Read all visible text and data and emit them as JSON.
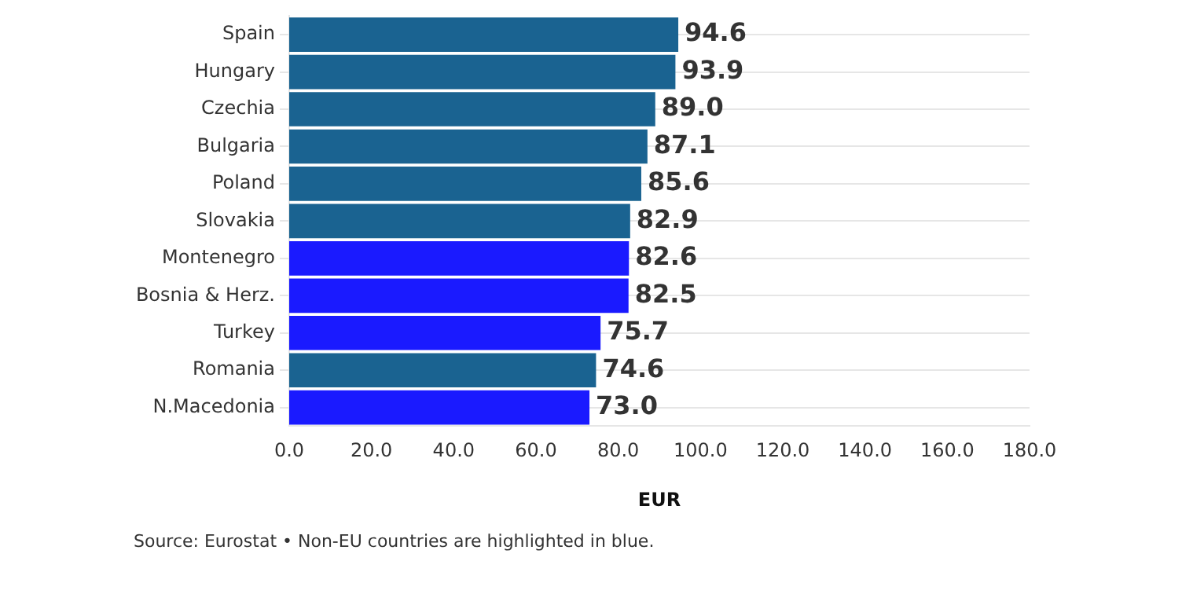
{
  "chart_data": {
    "type": "bar",
    "orientation": "horizontal",
    "xlabel": "EUR",
    "categories": [
      "Spain",
      "Hungary",
      "Czechia",
      "Bulgaria",
      "Poland",
      "Slovakia",
      "Montenegro",
      "Bosnia & Herz.",
      "Turkey",
      "Romania",
      "N.Macedonia"
    ],
    "values": [
      94.6,
      93.9,
      89.0,
      87.1,
      85.6,
      82.9,
      82.6,
      82.5,
      75.7,
      74.6,
      73.0
    ],
    "colors": [
      "#1a6391",
      "#1a6391",
      "#1a6391",
      "#1a6391",
      "#1a6391",
      "#1a6391",
      "#1a1aff",
      "#1a1aff",
      "#1a1aff",
      "#1a6391",
      "#1a1aff"
    ],
    "value_labels": [
      "94.6",
      "93.9",
      "89.0",
      "87.1",
      "85.6",
      "82.9",
      "82.6",
      "82.5",
      "75.7",
      "74.6",
      "73.0"
    ],
    "xlim": [
      0,
      180
    ],
    "xticks": [
      {
        "value": 0,
        "label": "0.0"
      },
      {
        "value": 20,
        "label": "20.0"
      },
      {
        "value": 40,
        "label": "40.0"
      },
      {
        "value": 60,
        "label": "60.0"
      },
      {
        "value": 80,
        "label": "80.0"
      },
      {
        "value": 100,
        "label": "100.0"
      },
      {
        "value": 120,
        "label": "120.0"
      },
      {
        "value": 140,
        "label": "140.0"
      },
      {
        "value": 160,
        "label": "160.0"
      },
      {
        "value": 180,
        "label": "180.0"
      }
    ],
    "grid": "y",
    "legend": false,
    "annotations": [
      "Source: Eurostat • Non-EU countries are highlighted in blue."
    ]
  }
}
